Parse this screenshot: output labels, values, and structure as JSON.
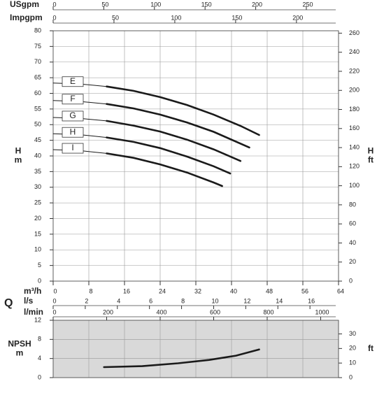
{
  "chart_data": [
    {
      "type": "line",
      "xlabel": "m³/h",
      "xlim": [
        0,
        64
      ],
      "xticks": [
        0,
        8,
        16,
        24,
        32,
        40,
        48,
        56,
        64
      ],
      "quantity_label": "Q",
      "ylabel": [
        "H",
        "m"
      ],
      "ylim": [
        0,
        80
      ],
      "yticks": [
        0,
        5,
        10,
        15,
        20,
        25,
        30,
        35,
        40,
        45,
        50,
        55,
        60,
        65,
        70,
        75,
        80
      ],
      "y2label": [
        "H",
        "ft"
      ],
      "y2lim": [
        0,
        262.5
      ],
      "y2ticks": [
        0,
        20,
        40,
        60,
        80,
        100,
        120,
        140,
        160,
        180,
        200,
        220,
        240,
        260
      ],
      "grid": true,
      "secondary_x_axes": [
        {
          "label": "USgpm",
          "xlim": [
            0,
            281.8
          ],
          "xticks": [
            0,
            50,
            100,
            150,
            200,
            250
          ]
        },
        {
          "label": "Impgpm",
          "xlim": [
            0,
            234.6
          ],
          "xticks": [
            0,
            50,
            100,
            150,
            200
          ]
        },
        {
          "label": "l/s",
          "xlim": [
            0,
            17.78
          ],
          "xticks": [
            0,
            2,
            4,
            6,
            8,
            10,
            12,
            14,
            16
          ]
        },
        {
          "label": "l/min",
          "xlim": [
            0,
            1066.7
          ],
          "xticks": [
            0,
            200,
            400,
            600,
            800,
            1000
          ]
        }
      ],
      "series": [
        {
          "name": "E",
          "color": "#1a1a1a",
          "x": [
            0,
            6,
            12,
            18,
            24,
            30,
            36,
            42,
            46.2
          ],
          "values": [
            63.3,
            63.0,
            62.2,
            60.8,
            58.8,
            56.3,
            53.2,
            49.6,
            46.7
          ]
        },
        {
          "name": "F",
          "color": "#1a1a1a",
          "x": [
            0,
            6,
            12,
            18,
            24,
            30,
            36,
            44
          ],
          "values": [
            57.7,
            57.4,
            56.6,
            55.2,
            53.2,
            50.7,
            47.7,
            42.7
          ]
        },
        {
          "name": "G",
          "color": "#1a1a1a",
          "x": [
            0,
            6,
            12,
            18,
            24,
            30,
            36,
            42
          ],
          "values": [
            52.3,
            52.0,
            51.2,
            49.7,
            47.8,
            45.2,
            42.1,
            38.4
          ]
        },
        {
          "name": "H",
          "color": "#1a1a1a",
          "x": [
            0,
            6,
            12,
            18,
            24,
            30,
            36,
            39.7
          ],
          "values": [
            47.1,
            46.8,
            45.9,
            44.5,
            42.5,
            39.8,
            36.7,
            34.4
          ]
        },
        {
          "name": "I",
          "color": "#1a1a1a",
          "x": [
            0,
            6,
            12,
            18,
            24,
            30,
            36,
            37.9
          ],
          "values": [
            42.0,
            41.7,
            40.8,
            39.4,
            37.3,
            34.7,
            31.5,
            30.4
          ]
        }
      ]
    },
    {
      "type": "line",
      "xlim": [
        0,
        64
      ],
      "ylabel": [
        "NPSH",
        "m"
      ],
      "ylim": [
        0,
        12
      ],
      "yticks": [
        0,
        4,
        8,
        12
      ],
      "y2label": "ft",
      "y2lim": [
        0,
        39.37
      ],
      "y2ticks": [
        0,
        10,
        20,
        30
      ],
      "grid": true,
      "background": "#d9d9d9",
      "series": [
        {
          "color": "#1a1a1a",
          "x": [
            11.4,
            20,
            28,
            35,
            41,
            46.2
          ],
          "values": [
            2.2,
            2.4,
            3.0,
            3.7,
            4.6,
            5.9
          ]
        }
      ]
    }
  ]
}
